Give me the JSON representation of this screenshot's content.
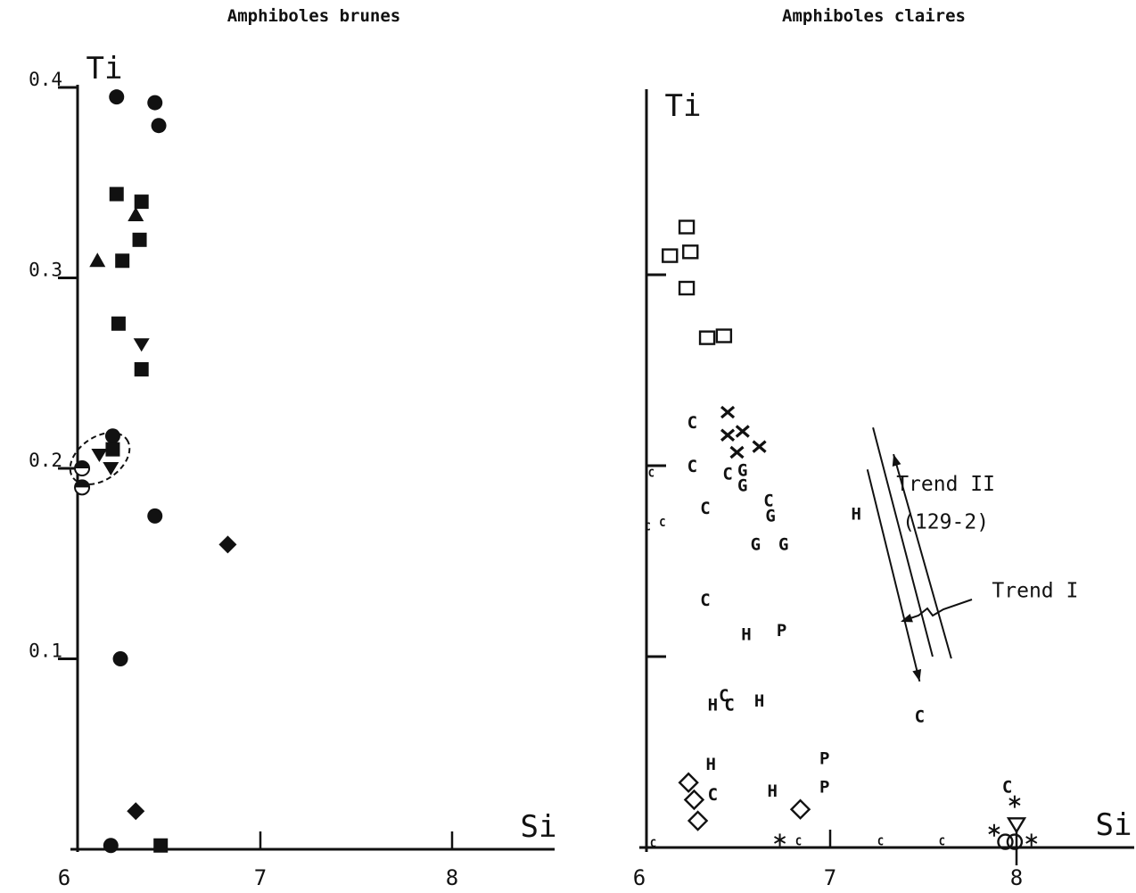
{
  "chart_data": [
    {
      "type": "scatter",
      "title": "Amphiboles brunes",
      "xlabel": "Si",
      "ylabel": "Ti",
      "xlim": [
        6,
        8.5
      ],
      "ylim": [
        0,
        0.4
      ],
      "x_ticks": [
        {
          "value": 6,
          "label": "6"
        },
        {
          "value": 7,
          "label": "7"
        },
        {
          "value": 8,
          "label": "8"
        }
      ],
      "y_ticks": [
        {
          "value": 0.1,
          "label": "0.1"
        },
        {
          "value": 0.2,
          "label": "0.2"
        },
        {
          "value": 0.3,
          "label": "0.3"
        },
        {
          "value": 0.4,
          "label": "0.4"
        }
      ],
      "points": [
        {
          "x": 6.25,
          "y": 0.395,
          "marker": "circle"
        },
        {
          "x": 6.45,
          "y": 0.392,
          "marker": "circle"
        },
        {
          "x": 6.47,
          "y": 0.38,
          "marker": "circle"
        },
        {
          "x": 6.25,
          "y": 0.344,
          "marker": "square"
        },
        {
          "x": 6.38,
          "y": 0.34,
          "marker": "square"
        },
        {
          "x": 6.35,
          "y": 0.333,
          "marker": "triangle-up"
        },
        {
          "x": 6.37,
          "y": 0.32,
          "marker": "square"
        },
        {
          "x": 6.15,
          "y": 0.309,
          "marker": "triangle-up"
        },
        {
          "x": 6.28,
          "y": 0.309,
          "marker": "square"
        },
        {
          "x": 6.26,
          "y": 0.276,
          "marker": "square"
        },
        {
          "x": 6.38,
          "y": 0.265,
          "marker": "triangle-down"
        },
        {
          "x": 6.38,
          "y": 0.252,
          "marker": "square"
        },
        {
          "x": 6.23,
          "y": 0.217,
          "marker": "circle"
        },
        {
          "x": 6.23,
          "y": 0.21,
          "marker": "square"
        },
        {
          "x": 6.16,
          "y": 0.207,
          "marker": "triangle-down"
        },
        {
          "x": 6.22,
          "y": 0.2,
          "marker": "triangle-down"
        },
        {
          "x": 6.07,
          "y": 0.2,
          "marker": "half-circle"
        },
        {
          "x": 6.07,
          "y": 0.19,
          "marker": "half-circle"
        },
        {
          "x": 6.45,
          "y": 0.175,
          "marker": "circle"
        },
        {
          "x": 6.83,
          "y": 0.16,
          "marker": "diamond"
        },
        {
          "x": 6.27,
          "y": 0.1,
          "marker": "circle"
        },
        {
          "x": 6.35,
          "y": 0.02,
          "marker": "diamond"
        },
        {
          "x": 6.22,
          "y": 0.002,
          "marker": "circle"
        },
        {
          "x": 6.48,
          "y": 0.002,
          "marker": "square"
        }
      ]
    },
    {
      "type": "scatter",
      "title": "Amphiboles claires",
      "xlabel": "Si",
      "ylabel": "Ti",
      "xlim": [
        6,
        8.6
      ],
      "ylim": [
        0,
        0.4
      ],
      "x_ticks": [
        {
          "value": 6,
          "label": "6"
        },
        {
          "value": 7,
          "label": "7"
        },
        {
          "value": 8,
          "label": "8"
        }
      ],
      "y_ticks": [
        {
          "value": 0.1,
          "label": ""
        },
        {
          "value": 0.2,
          "label": ""
        },
        {
          "value": 0.3,
          "label": ""
        }
      ],
      "points": [
        {
          "x": 6.14,
          "y": 0.31,
          "marker": "square-open"
        },
        {
          "x": 6.23,
          "y": 0.325,
          "marker": "square-open"
        },
        {
          "x": 6.25,
          "y": 0.312,
          "marker": "square-open"
        },
        {
          "x": 6.23,
          "y": 0.293,
          "marker": "square-open"
        },
        {
          "x": 6.34,
          "y": 0.267,
          "marker": "square-open"
        },
        {
          "x": 6.43,
          "y": 0.268,
          "marker": "square-open"
        },
        {
          "x": 6.45,
          "y": 0.228,
          "marker": "cross"
        },
        {
          "x": 6.45,
          "y": 0.216,
          "marker": "cross"
        },
        {
          "x": 6.53,
          "y": 0.218,
          "marker": "cross"
        },
        {
          "x": 6.5,
          "y": 0.207,
          "marker": "cross"
        },
        {
          "x": 6.62,
          "y": 0.21,
          "marker": "cross"
        },
        {
          "x": 6.24,
          "y": 0.034,
          "marker": "diamond-open"
        },
        {
          "x": 6.27,
          "y": 0.025,
          "marker": "diamond-open"
        },
        {
          "x": 6.29,
          "y": 0.014,
          "marker": "diamond-open"
        },
        {
          "x": 6.84,
          "y": 0.02,
          "marker": "diamond-open"
        },
        {
          "x": 7.94,
          "y": 0.003,
          "marker": "circle-open"
        },
        {
          "x": 7.99,
          "y": 0.003,
          "marker": "circle-open"
        },
        {
          "x": 8,
          "y": 0.012,
          "marker": "triangle-down-open"
        },
        {
          "x": 6.26,
          "y": 0.223,
          "marker": "letter",
          "label": "C"
        },
        {
          "x": 6.26,
          "y": 0.2,
          "marker": "letter",
          "label": "C"
        },
        {
          "x": 6.45,
          "y": 0.196,
          "marker": "letter",
          "label": "C"
        },
        {
          "x": 6.53,
          "y": 0.198,
          "marker": "letter",
          "label": "G"
        },
        {
          "x": 6.53,
          "y": 0.19,
          "marker": "letter",
          "label": "G"
        },
        {
          "x": 6.33,
          "y": 0.178,
          "marker": "letter",
          "label": "C"
        },
        {
          "x": 6.67,
          "y": 0.182,
          "marker": "letter",
          "label": "C"
        },
        {
          "x": 6.68,
          "y": 0.174,
          "marker": "letter",
          "label": "G"
        },
        {
          "x": 6.6,
          "y": 0.159,
          "marker": "letter",
          "label": "G"
        },
        {
          "x": 6.75,
          "y": 0.159,
          "marker": "letter",
          "label": "G"
        },
        {
          "x": 6.33,
          "y": 0.13,
          "marker": "letter",
          "label": "C"
        },
        {
          "x": 6.55,
          "y": 0.112,
          "marker": "letter",
          "label": "H"
        },
        {
          "x": 6.74,
          "y": 0.114,
          "marker": "letter",
          "label": "P"
        },
        {
          "x": 6.43,
          "y": 0.08,
          "marker": "letter",
          "label": "C"
        },
        {
          "x": 6.37,
          "y": 0.075,
          "marker": "letter",
          "label": "H"
        },
        {
          "x": 6.46,
          "y": 0.075,
          "marker": "letter",
          "label": "C"
        },
        {
          "x": 6.62,
          "y": 0.077,
          "marker": "letter",
          "label": "H"
        },
        {
          "x": 6.36,
          "y": 0.044,
          "marker": "letter",
          "label": "H"
        },
        {
          "x": 6.37,
          "y": 0.028,
          "marker": "letter",
          "label": "C"
        },
        {
          "x": 6.69,
          "y": 0.03,
          "marker": "letter",
          "label": "H"
        },
        {
          "x": 6.97,
          "y": 0.047,
          "marker": "letter",
          "label": "P"
        },
        {
          "x": 6.97,
          "y": 0.032,
          "marker": "letter",
          "label": "P"
        },
        {
          "x": 7.14,
          "y": 0.175,
          "marker": "letter",
          "label": "H"
        },
        {
          "x": 7.48,
          "y": 0.069,
          "marker": "letter",
          "label": "C"
        },
        {
          "x": 7.95,
          "y": 0.032,
          "marker": "letter",
          "label": "C"
        },
        {
          "x": 7.99,
          "y": 0.024,
          "marker": "asterisk"
        },
        {
          "x": 7.88,
          "y": 0.009,
          "marker": "asterisk"
        },
        {
          "x": 8.08,
          "y": 0.004,
          "marker": "asterisk"
        },
        {
          "x": 6.73,
          "y": 0.004,
          "marker": "asterisk"
        },
        {
          "x": 6.04,
          "y": 0.196,
          "marker": "letter-small",
          "label": "C"
        },
        {
          "x": 6.02,
          "y": 0.168,
          "marker": "letter-small",
          "label": "C"
        },
        {
          "x": 6.1,
          "y": 0.17,
          "marker": "letter-small",
          "label": "C"
        },
        {
          "x": 6.05,
          "y": 0.002,
          "marker": "letter-small",
          "label": "C"
        },
        {
          "x": 6.83,
          "y": 0.003,
          "marker": "letter-small",
          "label": "C"
        },
        {
          "x": 7.27,
          "y": 0.003,
          "marker": "letter-small",
          "label": "C"
        },
        {
          "x": 7.6,
          "y": 0.003,
          "marker": "letter-small",
          "label": "C"
        }
      ],
      "annotations": [
        {
          "text": "Trend II",
          "x": 7.62,
          "y": 0.187
        },
        {
          "text": "(129-2)",
          "x": 7.62,
          "y": 0.167
        },
        {
          "text": "Trend I",
          "x": 8.1,
          "y": 0.131
        }
      ],
      "trend_lines": [
        {
          "name": "Trend I",
          "from": [
            7.2,
            0.198
          ],
          "to": [
            7.48,
            0.087
          ],
          "arrow_end": true
        },
        {
          "name": "Trend II",
          "from": [
            7.65,
            0.099
          ],
          "to": [
            7.34,
            0.206
          ],
          "arrow_end": true
        },
        {
          "name": "Trend I guide",
          "from": [
            7.55,
            0.1
          ],
          "to": [
            7.23,
            0.22
          ],
          "arrow_end": false
        }
      ]
    }
  ]
}
